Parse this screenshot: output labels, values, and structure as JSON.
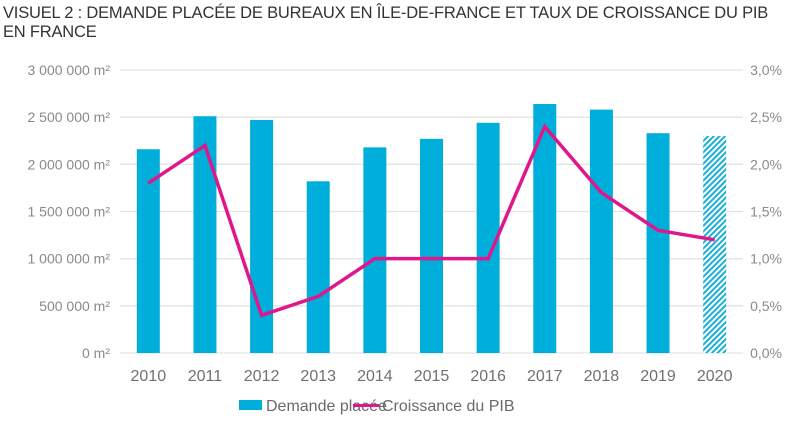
{
  "title": "VISUEL 2 : DEMANDE PLACÉE DE BUREAUX EN ÎLE-DE-FRANCE  ET TAUX DE CROISSANCE  DU PIB EN FRANCE",
  "chart_data": {
    "type": "bar",
    "title": "VISUEL 2 : DEMANDE PLACÉE DE BUREAUX EN ÎLE-DE-FRANCE ET TAUX DE CROISSANCE DU PIB EN FRANCE",
    "categories": [
      "2010",
      "2011",
      "2012",
      "2013",
      "2014",
      "2015",
      "2016",
      "2017",
      "2018",
      "2019",
      "2020"
    ],
    "series": [
      {
        "name": "Demande placée",
        "type": "bar",
        "axis": "left",
        "color": "#00AEDB",
        "unit": "m²",
        "values": [
          2160000,
          2510000,
          2470000,
          1820000,
          2180000,
          2270000,
          2440000,
          2640000,
          2580000,
          2330000,
          2300000
        ],
        "hatched": [
          false,
          false,
          false,
          false,
          false,
          false,
          false,
          false,
          false,
          false,
          true
        ]
      },
      {
        "name": "Croissance du PIB",
        "type": "line",
        "axis": "right",
        "color": "#E0168C",
        "unit": "%",
        "values": [
          1.8,
          2.2,
          0.4,
          0.6,
          1.0,
          1.0,
          1.0,
          2.4,
          1.7,
          1.3,
          1.2
        ]
      }
    ],
    "left_axis": {
      "ylim": [
        0,
        3000000
      ],
      "tick_labels": [
        "0 m²",
        "500 000 m²",
        "1 000 000 m²",
        "1 500 000 m²",
        "2 000 000 m²",
        "2 500 000 m²",
        "3 000 000 m²"
      ],
      "tick_values": [
        0,
        500000,
        1000000,
        1500000,
        2000000,
        2500000,
        3000000
      ]
    },
    "right_axis": {
      "ylim": [
        0,
        3.0
      ],
      "tick_labels": [
        "0,0%",
        "0,5%",
        "1,0%",
        "1,5%",
        "2,0%",
        "2,5%",
        "3,0%"
      ],
      "tick_values": [
        0,
        0.5,
        1.0,
        1.5,
        2.0,
        2.5,
        3.0
      ]
    },
    "xlabel": "",
    "grid": true,
    "legend": {
      "placement": "bottom-center",
      "entries": [
        "Demande placée",
        "Croissance du PIB"
      ]
    }
  }
}
